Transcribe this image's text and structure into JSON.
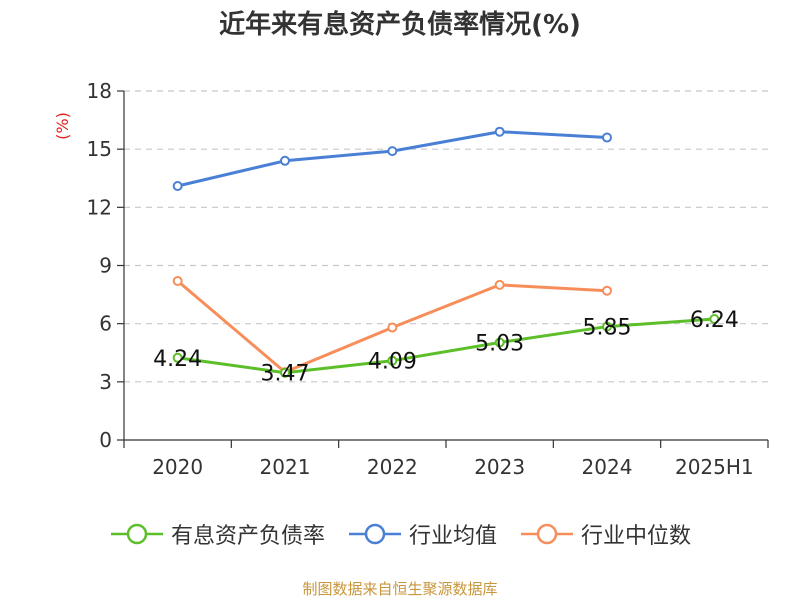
{
  "title": "近年来有息资产负债率情况(%)",
  "source": "制图数据来自恒生聚源数据库",
  "chart_data": {
    "type": "line",
    "categories": [
      "2020",
      "2021",
      "2022",
      "2023",
      "2024",
      "2025H1"
    ],
    "ylabel": "(%)",
    "ylim": [
      0,
      18
    ],
    "yticks": [
      0,
      3,
      6,
      9,
      12,
      15,
      18
    ],
    "grid": true,
    "legend_position": "bottom",
    "series": [
      {
        "name": "有息资产负债率",
        "color": "#5cbf2a",
        "values": [
          4.24,
          3.47,
          4.09,
          5.03,
          5.85,
          6.24
        ],
        "labels": true
      },
      {
        "name": "行业均值",
        "color": "#4a7fd6",
        "values": [
          13.1,
          14.4,
          14.9,
          15.9,
          15.6,
          null
        ],
        "labels": false
      },
      {
        "name": "行业中位数",
        "color": "#f78e5a",
        "values": [
          8.2,
          3.5,
          5.8,
          8.0,
          7.7,
          null
        ],
        "labels": false
      }
    ]
  }
}
